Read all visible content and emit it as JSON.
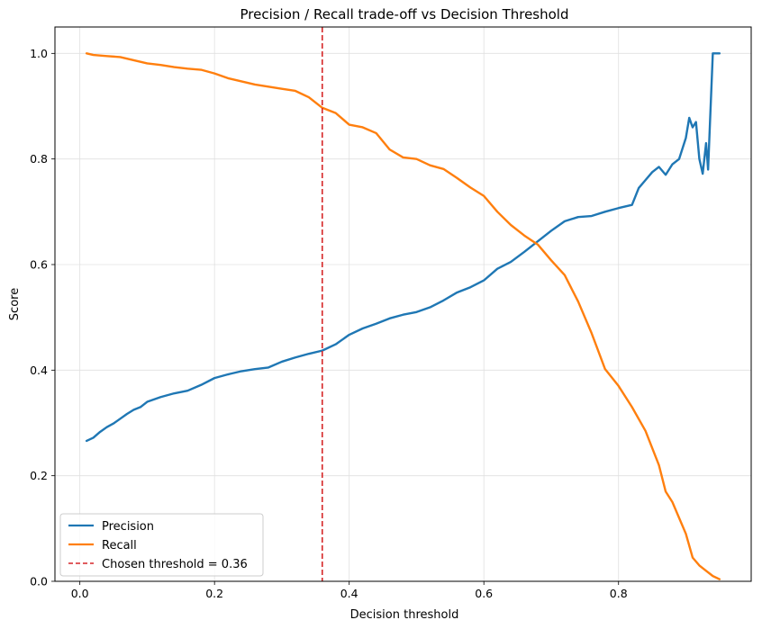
{
  "chart_data": {
    "type": "line",
    "title": "Precision / Recall trade-off vs Decision Threshold",
    "xlabel": "Decision threshold",
    "ylabel": "Score",
    "xlim": [
      -0.037,
      0.997
    ],
    "ylim": [
      0,
      1.05
    ],
    "xticks": [
      0.0,
      0.2,
      0.4,
      0.6,
      0.8
    ],
    "xtick_labels": [
      "0.0",
      "0.2",
      "0.4",
      "0.6",
      "0.8"
    ],
    "yticks": [
      0.0,
      0.2,
      0.4,
      0.6,
      0.8,
      1.0
    ],
    "ytick_labels": [
      "0.0",
      "0.2",
      "0.4",
      "0.6",
      "0.8",
      "1.0"
    ],
    "grid": true,
    "legend_position": "lower-left",
    "series": [
      {
        "name": "Precision",
        "color": "#1f77b4",
        "points": [
          [
            0.01,
            0.266
          ],
          [
            0.02,
            0.272
          ],
          [
            0.03,
            0.283
          ],
          [
            0.04,
            0.292
          ],
          [
            0.05,
            0.299
          ],
          [
            0.06,
            0.308
          ],
          [
            0.07,
            0.317
          ],
          [
            0.08,
            0.325
          ],
          [
            0.09,
            0.33
          ],
          [
            0.1,
            0.34
          ],
          [
            0.12,
            0.349
          ],
          [
            0.14,
            0.356
          ],
          [
            0.16,
            0.361
          ],
          [
            0.18,
            0.372
          ],
          [
            0.2,
            0.385
          ],
          [
            0.22,
            0.392
          ],
          [
            0.24,
            0.398
          ],
          [
            0.26,
            0.402
          ],
          [
            0.28,
            0.405
          ],
          [
            0.3,
            0.416
          ],
          [
            0.32,
            0.424
          ],
          [
            0.34,
            0.431
          ],
          [
            0.36,
            0.437
          ],
          [
            0.38,
            0.449
          ],
          [
            0.4,
            0.467
          ],
          [
            0.42,
            0.479
          ],
          [
            0.44,
            0.488
          ],
          [
            0.46,
            0.498
          ],
          [
            0.48,
            0.505
          ],
          [
            0.5,
            0.51
          ],
          [
            0.52,
            0.519
          ],
          [
            0.54,
            0.532
          ],
          [
            0.56,
            0.547
          ],
          [
            0.58,
            0.557
          ],
          [
            0.6,
            0.57
          ],
          [
            0.62,
            0.592
          ],
          [
            0.64,
            0.605
          ],
          [
            0.66,
            0.624
          ],
          [
            0.68,
            0.644
          ],
          [
            0.7,
            0.664
          ],
          [
            0.72,
            0.682
          ],
          [
            0.74,
            0.69
          ],
          [
            0.76,
            0.692
          ],
          [
            0.78,
            0.7
          ],
          [
            0.8,
            0.707
          ],
          [
            0.82,
            0.713
          ],
          [
            0.83,
            0.745
          ],
          [
            0.84,
            0.76
          ],
          [
            0.85,
            0.775
          ],
          [
            0.86,
            0.785
          ],
          [
            0.87,
            0.77
          ],
          [
            0.88,
            0.79
          ],
          [
            0.89,
            0.8
          ],
          [
            0.9,
            0.84
          ],
          [
            0.905,
            0.878
          ],
          [
            0.91,
            0.86
          ],
          [
            0.915,
            0.87
          ],
          [
            0.92,
            0.8
          ],
          [
            0.925,
            0.772
          ],
          [
            0.93,
            0.83
          ],
          [
            0.933,
            0.78
          ],
          [
            0.936,
            0.875
          ],
          [
            0.94,
            1.0
          ],
          [
            0.95,
            1.0
          ]
        ]
      },
      {
        "name": "Recall",
        "color": "#ff7f0e",
        "points": [
          [
            0.01,
            1.0
          ],
          [
            0.02,
            0.997
          ],
          [
            0.04,
            0.995
          ],
          [
            0.06,
            0.993
          ],
          [
            0.08,
            0.987
          ],
          [
            0.1,
            0.981
          ],
          [
            0.12,
            0.978
          ],
          [
            0.14,
            0.974
          ],
          [
            0.16,
            0.971
          ],
          [
            0.18,
            0.969
          ],
          [
            0.2,
            0.962
          ],
          [
            0.22,
            0.953
          ],
          [
            0.24,
            0.947
          ],
          [
            0.26,
            0.941
          ],
          [
            0.28,
            0.937
          ],
          [
            0.3,
            0.933
          ],
          [
            0.32,
            0.929
          ],
          [
            0.34,
            0.917
          ],
          [
            0.36,
            0.897
          ],
          [
            0.38,
            0.887
          ],
          [
            0.4,
            0.865
          ],
          [
            0.42,
            0.86
          ],
          [
            0.44,
            0.849
          ],
          [
            0.46,
            0.818
          ],
          [
            0.48,
            0.803
          ],
          [
            0.5,
            0.8
          ],
          [
            0.52,
            0.788
          ],
          [
            0.54,
            0.781
          ],
          [
            0.56,
            0.764
          ],
          [
            0.58,
            0.746
          ],
          [
            0.6,
            0.73
          ],
          [
            0.62,
            0.7
          ],
          [
            0.64,
            0.675
          ],
          [
            0.66,
            0.655
          ],
          [
            0.68,
            0.638
          ],
          [
            0.7,
            0.608
          ],
          [
            0.72,
            0.58
          ],
          [
            0.74,
            0.53
          ],
          [
            0.76,
            0.47
          ],
          [
            0.78,
            0.402
          ],
          [
            0.8,
            0.37
          ],
          [
            0.82,
            0.33
          ],
          [
            0.84,
            0.285
          ],
          [
            0.86,
            0.22
          ],
          [
            0.87,
            0.17
          ],
          [
            0.88,
            0.15
          ],
          [
            0.89,
            0.12
          ],
          [
            0.9,
            0.09
          ],
          [
            0.91,
            0.045
          ],
          [
            0.92,
            0.03
          ],
          [
            0.93,
            0.02
          ],
          [
            0.94,
            0.01
          ],
          [
            0.95,
            0.004
          ]
        ]
      }
    ],
    "threshold": {
      "name": "Chosen threshold = 0.36",
      "value": 0.36,
      "color": "#d62728"
    }
  }
}
